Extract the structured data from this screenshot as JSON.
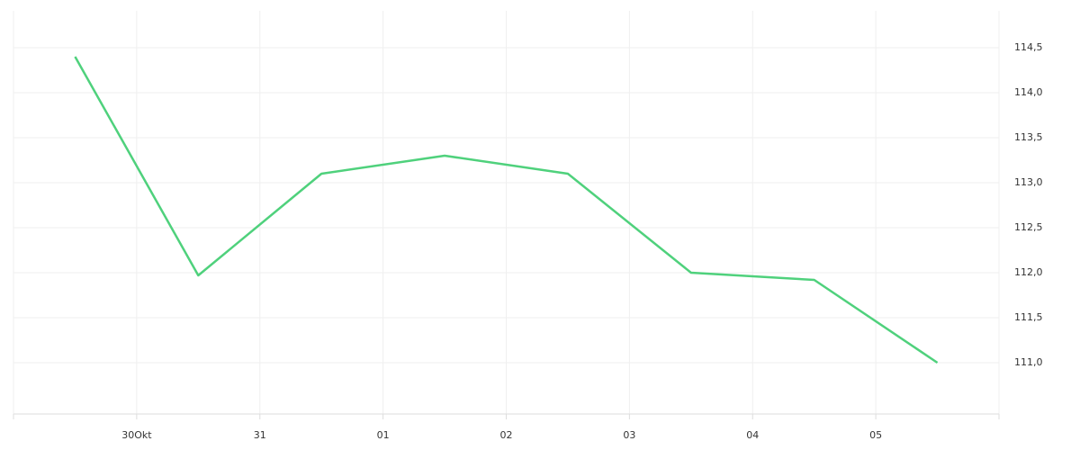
{
  "chart_data": {
    "type": "line",
    "x": [
      0,
      1,
      2,
      3,
      4,
      5,
      6,
      7
    ],
    "xlim": [
      -0.5,
      7.5
    ],
    "xticks": [
      {
        "value": 0.5,
        "label": "30Okt"
      },
      {
        "value": 1.5,
        "label": "31"
      },
      {
        "value": 2.5,
        "label": "01"
      },
      {
        "value": 3.5,
        "label": "02"
      },
      {
        "value": 4.5,
        "label": "03"
      },
      {
        "value": 5.5,
        "label": "04"
      },
      {
        "value": 6.5,
        "label": "05"
      }
    ],
    "ylim": [
      110.4,
      114.9
    ],
    "yticks": [
      {
        "value": 111.0,
        "label": "111,0"
      },
      {
        "value": 111.5,
        "label": "111,5"
      },
      {
        "value": 112.0,
        "label": "112,0"
      },
      {
        "value": 112.5,
        "label": "112,5"
      },
      {
        "value": 113.0,
        "label": "113,0"
      },
      {
        "value": 113.5,
        "label": "113,5"
      },
      {
        "value": 114.0,
        "label": "114,0"
      },
      {
        "value": 114.5,
        "label": "114,5"
      }
    ],
    "y_axis_side": "right",
    "grid": true,
    "series": [
      {
        "color": "#4fd17c",
        "values": [
          114.4,
          111.97,
          113.1,
          113.3,
          113.1,
          112.0,
          111.92,
          111.0
        ]
      }
    ]
  }
}
